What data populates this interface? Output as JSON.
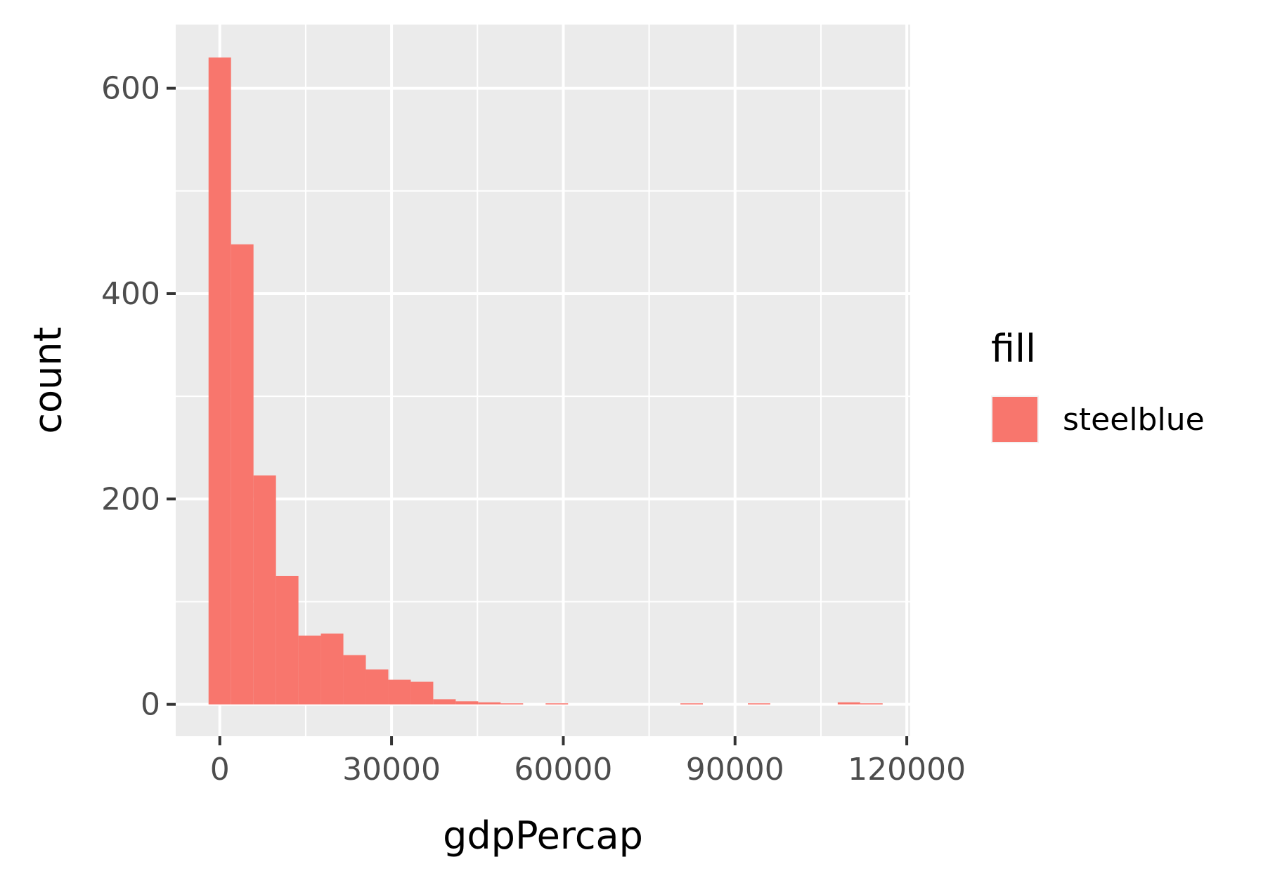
{
  "chart_data": {
    "type": "bar",
    "subtype": "histogram",
    "xlabel": "gdpPercap",
    "ylabel": "count",
    "x_ticks": [
      0,
      30000,
      60000,
      90000,
      120000
    ],
    "y_ticks": [
      0,
      200,
      400,
      600
    ],
    "xlim": [
      -7700,
      120600
    ],
    "ylim": [
      -31,
      662
    ],
    "bin_width": 3925,
    "bin_start": -1963,
    "bins": [
      {
        "x0": -1963,
        "x1": 1962,
        "count": 630
      },
      {
        "x0": 1962,
        "x1": 5887,
        "count": 448
      },
      {
        "x0": 5887,
        "x1": 9812,
        "count": 223
      },
      {
        "x0": 9812,
        "x1": 13737,
        "count": 125
      },
      {
        "x0": 13737,
        "x1": 17662,
        "count": 67
      },
      {
        "x0": 17662,
        "x1": 21587,
        "count": 69
      },
      {
        "x0": 21587,
        "x1": 25512,
        "count": 48
      },
      {
        "x0": 25512,
        "x1": 29437,
        "count": 34
      },
      {
        "x0": 29437,
        "x1": 33362,
        "count": 24
      },
      {
        "x0": 33362,
        "x1": 37287,
        "count": 22
      },
      {
        "x0": 37287,
        "x1": 41212,
        "count": 5
      },
      {
        "x0": 41212,
        "x1": 45137,
        "count": 3
      },
      {
        "x0": 45137,
        "x1": 49062,
        "count": 2
      },
      {
        "x0": 49062,
        "x1": 52987,
        "count": 1
      },
      {
        "x0": 52987,
        "x1": 56912,
        "count": 0
      },
      {
        "x0": 56912,
        "x1": 60837,
        "count": 1
      },
      {
        "x0": 60837,
        "x1": 64762,
        "count": 0
      },
      {
        "x0": 64762,
        "x1": 68687,
        "count": 0
      },
      {
        "x0": 68687,
        "x1": 72612,
        "count": 0
      },
      {
        "x0": 72612,
        "x1": 76537,
        "count": 0
      },
      {
        "x0": 76537,
        "x1": 80462,
        "count": 0
      },
      {
        "x0": 80462,
        "x1": 84387,
        "count": 1
      },
      {
        "x0": 84387,
        "x1": 88312,
        "count": 0
      },
      {
        "x0": 88312,
        "x1": 92237,
        "count": 0
      },
      {
        "x0": 92237,
        "x1": 96162,
        "count": 1
      },
      {
        "x0": 96162,
        "x1": 100087,
        "count": 0
      },
      {
        "x0": 100087,
        "x1": 104012,
        "count": 0
      },
      {
        "x0": 104012,
        "x1": 107937,
        "count": 0
      },
      {
        "x0": 107937,
        "x1": 111862,
        "count": 2
      },
      {
        "x0": 111862,
        "x1": 115787,
        "count": 1
      }
    ],
    "bar_color": "#F8766D",
    "panel_background": "#EBEBEB",
    "grid": true,
    "legend": {
      "title": "fill",
      "placement": "right",
      "entries": [
        {
          "label": "steelblue",
          "color": "#F8766D"
        }
      ]
    }
  }
}
